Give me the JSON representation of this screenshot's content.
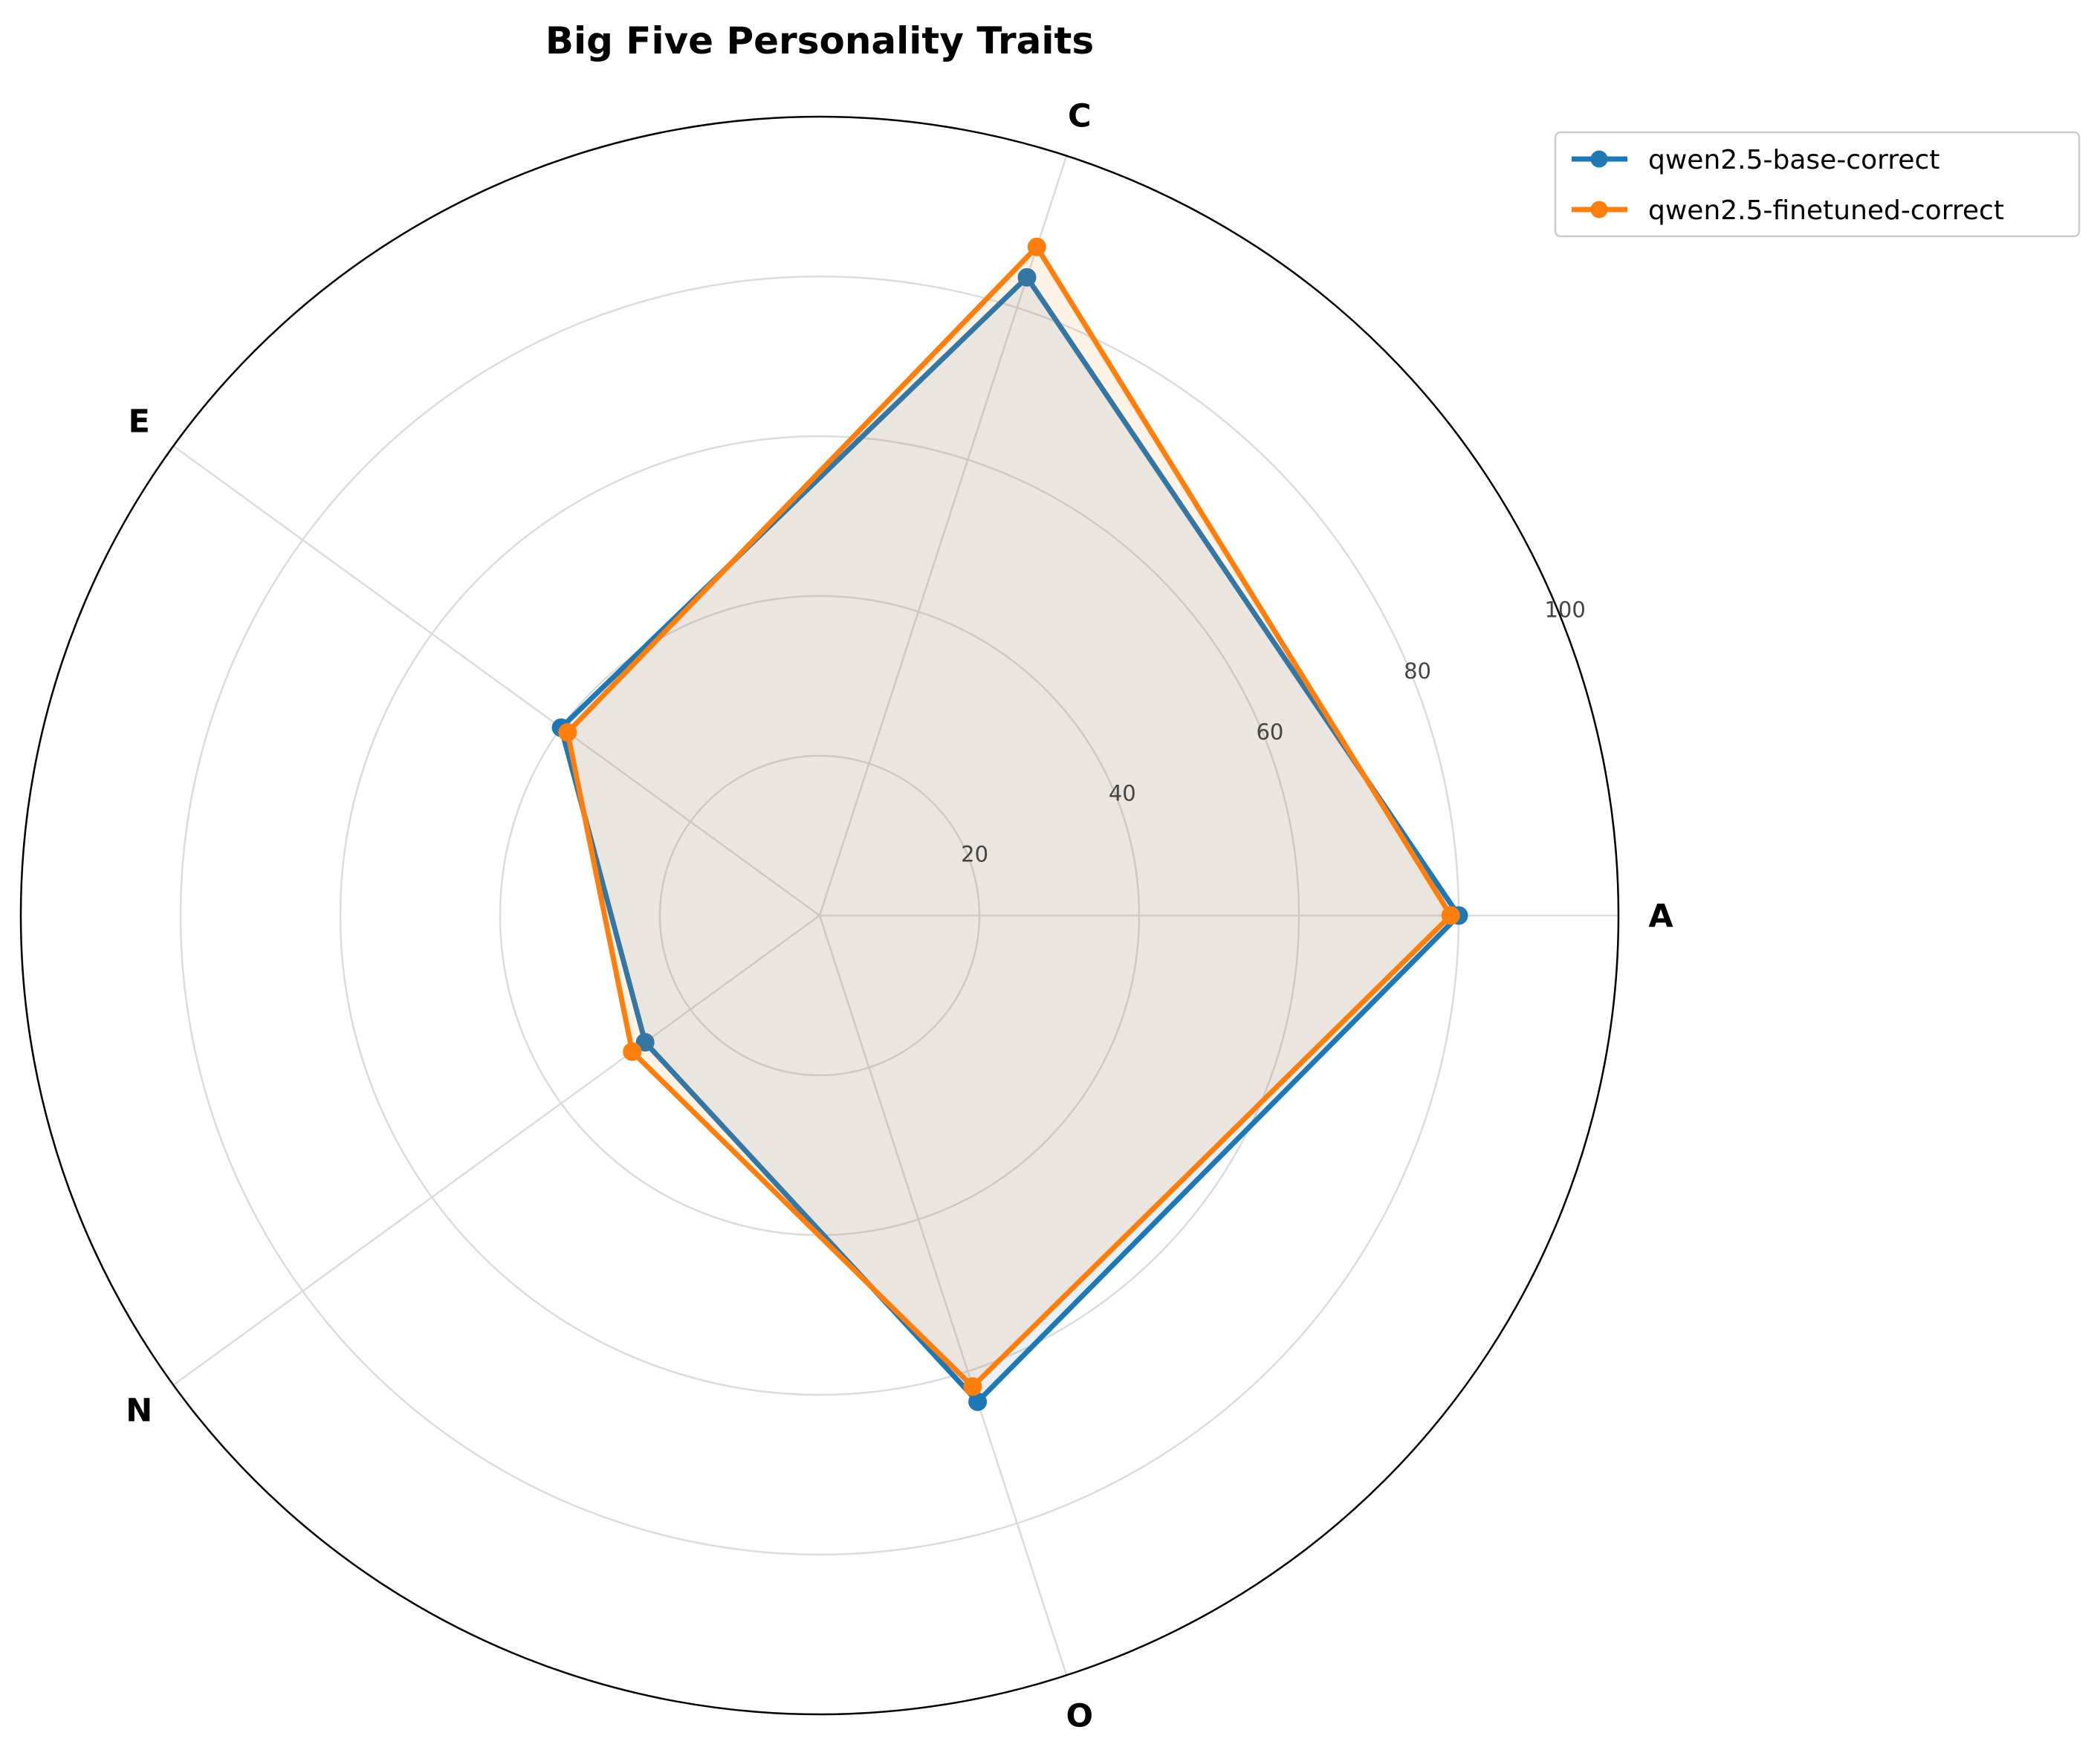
{
  "chart_data": {
    "type": "radar",
    "title": "Big Five Personality Traits",
    "categories": [
      "A",
      "C",
      "E",
      "N",
      "O"
    ],
    "rlim": [
      0,
      100
    ],
    "rticks": [
      20,
      40,
      60,
      80,
      100
    ],
    "rtick_labels": [
      "20",
      "40",
      "60",
      "80",
      "100"
    ],
    "grid": true,
    "legend_position": "top-right outside",
    "series": [
      {
        "name": "qwen2.5-base-correct",
        "color": "#1f77b4",
        "values": [
          80,
          84,
          40,
          27,
          64
        ]
      },
      {
        "name": "qwen2.5-finetuned-correct",
        "color": "#ff7f0e",
        "values": [
          79,
          88,
          39,
          29,
          62
        ]
      }
    ]
  }
}
